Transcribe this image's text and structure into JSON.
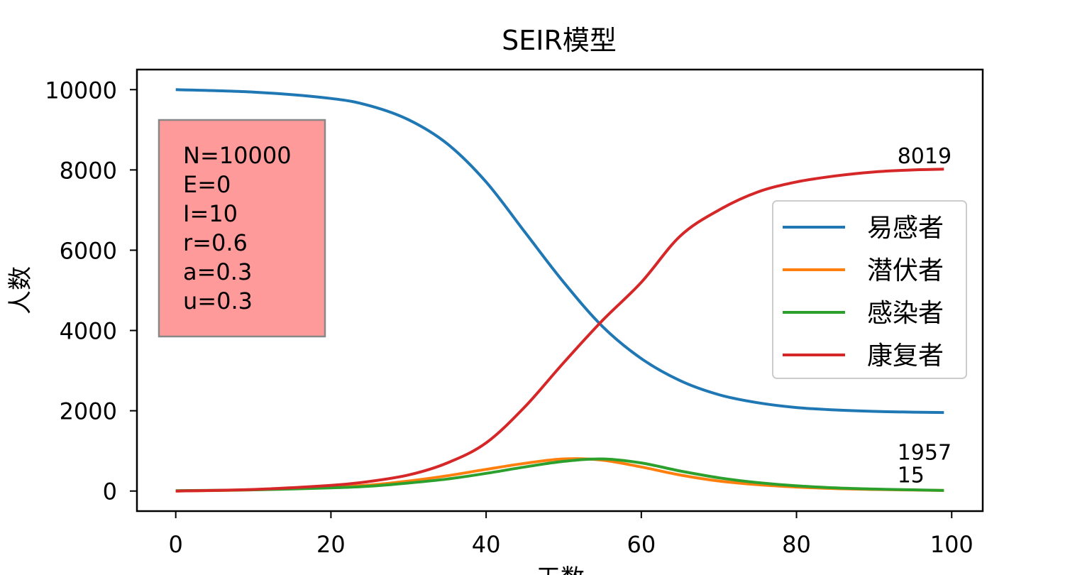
{
  "chart_data": {
    "type": "line",
    "title": "SEIR模型",
    "xlabel": "天数",
    "ylabel": "人数",
    "xlim": [
      -5,
      104
    ],
    "ylim": [
      -500,
      10500
    ],
    "xticks": [
      0,
      20,
      40,
      60,
      80,
      100
    ],
    "yticks": [
      0,
      2000,
      4000,
      6000,
      8000,
      10000
    ],
    "grid": false,
    "legend_position": "center-right",
    "series": [
      {
        "name": "易感者",
        "color": "#1f77b4",
        "x": [
          0,
          10,
          20,
          25,
          30,
          35,
          40,
          45,
          50,
          55,
          60,
          65,
          70,
          75,
          80,
          85,
          90,
          95,
          99
        ],
        "y": [
          10000,
          9940,
          9780,
          9600,
          9250,
          8650,
          7700,
          6450,
          5200,
          4100,
          3300,
          2750,
          2400,
          2200,
          2080,
          2020,
          1985,
          1965,
          1957
        ]
      },
      {
        "name": "潜伏者",
        "color": "#ff7f0e",
        "x": [
          0,
          10,
          20,
          25,
          30,
          35,
          40,
          45,
          50,
          55,
          60,
          65,
          70,
          75,
          80,
          85,
          90,
          95,
          99
        ],
        "y": [
          0,
          30,
          100,
          150,
          250,
          380,
          540,
          690,
          800,
          770,
          600,
          400,
          250,
          160,
          100,
          60,
          40,
          25,
          15
        ]
      },
      {
        "name": "感染者",
        "color": "#2ca02c",
        "x": [
          0,
          10,
          20,
          25,
          30,
          35,
          40,
          45,
          50,
          55,
          60,
          65,
          70,
          75,
          80,
          85,
          90,
          95,
          99
        ],
        "y": [
          10,
          30,
          80,
          120,
          200,
          300,
          440,
          600,
          740,
          800,
          700,
          500,
          330,
          210,
          130,
          80,
          50,
          30,
          15
        ]
      },
      {
        "name": "康复者",
        "color": "#d62728",
        "x": [
          0,
          10,
          20,
          25,
          30,
          35,
          40,
          45,
          50,
          55,
          60,
          65,
          70,
          75,
          80,
          85,
          90,
          95,
          99
        ],
        "y": [
          0,
          40,
          140,
          240,
          400,
          700,
          1200,
          2100,
          3200,
          4250,
          5200,
          6350,
          7000,
          7450,
          7700,
          7850,
          7950,
          8000,
          8019
        ]
      }
    ],
    "annotations": [
      {
        "text": "8019",
        "x": 93,
        "y": 8170
      },
      {
        "text": "1957",
        "x": 93,
        "y": 780
      },
      {
        "text": "15",
        "x": 93,
        "y": 220
      }
    ],
    "info_box": {
      "lines": [
        "N=10000",
        "E=0",
        "I=10",
        "r=0.6",
        "a=0.3",
        "u=0.3"
      ],
      "background": "#ff9a9a"
    }
  }
}
